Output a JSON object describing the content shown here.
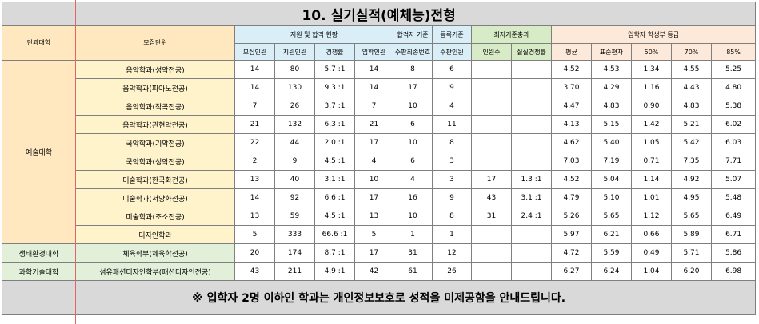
{
  "title": "10. 실기실적(예체능)전형",
  "headers": {
    "college": "단과대학",
    "unit": "모집단위",
    "group_apply": "지원 및 합격 현황",
    "group_pass": "합격자 기준",
    "group_enroll": "등록기준",
    "group_min": "최저기준충과",
    "group_grade": "입학자 학생부 등급",
    "sub": [
      "모집인원",
      "지원인원",
      "경쟁률",
      "입학인원",
      "주판최종번호",
      "주판인원",
      "인원수",
      "실질경쟁률",
      "평균",
      "표준편차",
      "50%",
      "70%",
      "85%"
    ]
  },
  "rows": [
    {
      "college": "예술대학",
      "unit": "음악학과(성악전공)",
      "cells": [
        "14",
        "80",
        "5.7 :1",
        "14",
        "8",
        "6",
        "",
        "",
        "4.52",
        "4.53",
        "1.34",
        "4.55",
        "5.25"
      ]
    },
    {
      "college": "",
      "unit": "음악학과(피아노전공)",
      "cells": [
        "14",
        "130",
        "9.3 :1",
        "14",
        "17",
        "9",
        "",
        "",
        "3.70",
        "4.29",
        "1.16",
        "4.43",
        "4.80"
      ]
    },
    {
      "college": "",
      "unit": "음악학과(작곡전공)",
      "cells": [
        "7",
        "26",
        "3.7 :1",
        "7",
        "10",
        "4",
        "",
        "",
        "4.47",
        "4.83",
        "0.90",
        "4.83",
        "5.38"
      ]
    },
    {
      "college": "",
      "unit": "음악학과(관현악전공)",
      "cells": [
        "21",
        "132",
        "6.3 :1",
        "21",
        "6",
        "11",
        "",
        "",
        "4.13",
        "5.15",
        "1.42",
        "5.21",
        "6.02"
      ]
    },
    {
      "college": "",
      "unit": "국악학과(기악전공)",
      "cells": [
        "22",
        "44",
        "2.0 :1",
        "17",
        "10",
        "8",
        "",
        "",
        "4.62",
        "5.40",
        "1.05",
        "5.42",
        "6.03"
      ]
    },
    {
      "college": "",
      "unit": "국악학과(성악전공)",
      "cells": [
        "2",
        "9",
        "4.5 :1",
        "4",
        "6",
        "3",
        "",
        "",
        "7.03",
        "7.19",
        "0.71",
        "7.35",
        "7.71"
      ]
    },
    {
      "college": "",
      "unit": "미술학과(한국화전공)",
      "cells": [
        "13",
        "40",
        "3.1 :1",
        "10",
        "4",
        "3",
        "17",
        "1.3 :1",
        "4.52",
        "5.04",
        "1.14",
        "4.92",
        "5.07"
      ]
    },
    {
      "college": "",
      "unit": "미술학과(서양화전공)",
      "cells": [
        "14",
        "92",
        "6.6 :1",
        "17",
        "16",
        "9",
        "43",
        "3.1 :1",
        "4.79",
        "5.10",
        "1.01",
        "4.95",
        "5.48"
      ]
    },
    {
      "college": "",
      "unit": "미술학과(조소전공)",
      "cells": [
        "13",
        "59",
        "4.5 :1",
        "13",
        "10",
        "8",
        "31",
        "2.4 :1",
        "5.26",
        "5.65",
        "1.12",
        "5.65",
        "6.49"
      ]
    },
    {
      "college": "",
      "unit": "디자인학과",
      "cells": [
        "5",
        "333",
        "66.6 :1",
        "5",
        "1",
        "1",
        "",
        "",
        "5.97",
        "6.21",
        "0.66",
        "5.89",
        "6.71"
      ]
    },
    {
      "college": "생태환경대학",
      "unit": "체육학부(체육학전공)",
      "cells": [
        "20",
        "174",
        "8.7 :1",
        "17",
        "31",
        "12",
        "",
        "",
        "4.72",
        "5.59",
        "0.49",
        "5.71",
        "5.86"
      ]
    },
    {
      "college": "과학기술대학",
      "unit": "섬유패션디자인학부(패션디자인전공)",
      "cells": [
        "43",
        "211",
        "4.9 :1",
        "42",
        "61",
        "26",
        "",
        "",
        "6.27",
        "6.24",
        "1.04",
        "6.20",
        "6.98"
      ]
    }
  ],
  "footer": "※ 입학자 2명 이하인 학과는 개인정보보호로 성적을 미제공함을 안내드립니다."
}
